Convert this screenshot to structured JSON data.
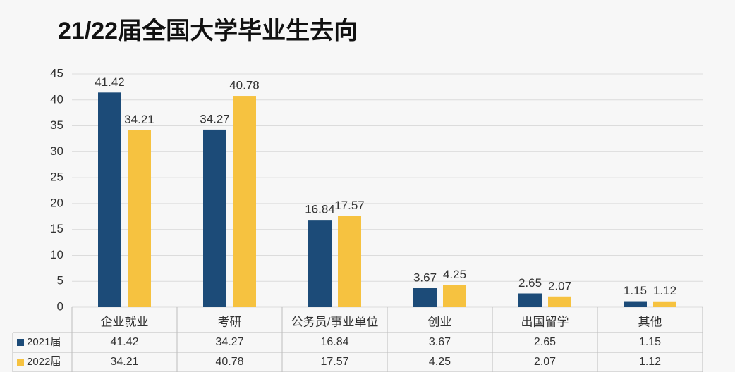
{
  "chart_data": {
    "type": "bar",
    "title": "21/22届全国大学毕业生去向",
    "categories": [
      "企业就业",
      "考研",
      "公务员/事业单位",
      "创业",
      "出国留学",
      "其他"
    ],
    "series": [
      {
        "name": "2021届",
        "color": "#1c4b78",
        "values": [
          41.42,
          34.27,
          16.84,
          3.67,
          2.65,
          1.15
        ]
      },
      {
        "name": "2022届",
        "color": "#f6c240",
        "values": [
          34.21,
          40.78,
          17.57,
          4.25,
          2.07,
          1.12
        ]
      }
    ],
    "ylim": [
      0,
      45
    ],
    "yticks": [
      0,
      5,
      10,
      15,
      20,
      25,
      30,
      35,
      40,
      45
    ],
    "grid": true
  }
}
